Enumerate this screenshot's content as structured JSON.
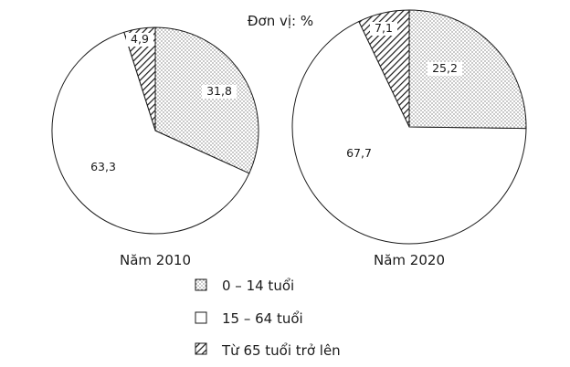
{
  "chart_data": {
    "type": "pie",
    "unit_label": "Đơn vị: %",
    "series": [
      {
        "name": "0 – 14 tuổi",
        "pattern": "dots"
      },
      {
        "name": "15 – 64 tuổi",
        "pattern": "blank"
      },
      {
        "name": "Từ 65 tuổi trở lên",
        "pattern": "hatch"
      }
    ],
    "charts": [
      {
        "title": "Năm 2010",
        "values": [
          31.8,
          63.3,
          4.9
        ],
        "labels": [
          "31,8",
          "63,3",
          "4,9"
        ]
      },
      {
        "title": "Năm 2020",
        "values": [
          25.2,
          67.7,
          7.1
        ],
        "labels": [
          "25,2",
          "67,7",
          "7,1"
        ]
      }
    ],
    "legend_position": "bottom-center",
    "colors": {
      "stroke": "#1a1a1a",
      "fill": "#ffffff"
    }
  }
}
